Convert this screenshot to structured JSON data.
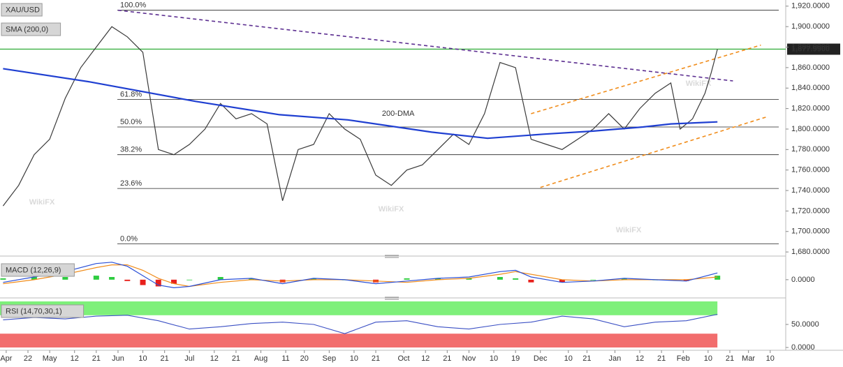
{
  "chart_data": [
    {
      "type": "line",
      "xlim": [
        -1,
        252
      ],
      "ylim": [
        1676,
        1926
      ],
      "yticks": [
        {
          "value": 1680,
          "label": "1,680.0000"
        },
        {
          "value": 1700,
          "label": "1,700.0000"
        },
        {
          "value": 1720,
          "label": "1,720.0000"
        },
        {
          "value": 1740,
          "label": "1,740.0000"
        },
        {
          "value": 1760,
          "label": "1,760.0000"
        },
        {
          "value": 1780,
          "label": "1,780.0000"
        },
        {
          "value": 1800,
          "label": "1,800.0000"
        },
        {
          "value": 1820,
          "label": "1,820.0000"
        },
        {
          "value": 1840,
          "label": "1,840.0000"
        },
        {
          "value": 1860,
          "label": "1,860.0000"
        },
        {
          "value": 1880,
          "label": "1,880.0000"
        },
        {
          "value": 1900,
          "label": "1,900.0000"
        },
        {
          "value": 1920,
          "label": "1,920.0000"
        }
      ],
      "series": [
        {
          "name": "XAU/USD",
          "color": "#3a3a3a",
          "x": [
            0,
            5,
            10,
            15,
            20,
            25,
            30,
            35,
            40,
            45,
            50,
            55,
            60,
            65,
            70,
            75,
            80,
            85,
            90,
            95,
            100,
            105,
            110,
            115,
            120,
            125,
            130,
            135,
            140,
            145,
            150,
            155,
            160,
            165,
            170,
            175,
            180,
            185,
            190,
            195,
            200,
            205,
            210,
            215,
            218,
            222,
            226,
            228,
            230
          ],
          "values": [
            1725,
            1745,
            1775,
            1790,
            1830,
            1860,
            1880,
            1900,
            1890,
            1875,
            1780,
            1775,
            1785,
            1800,
            1825,
            1810,
            1815,
            1805,
            1730,
            1780,
            1785,
            1815,
            1800,
            1790,
            1755,
            1745,
            1760,
            1765,
            1780,
            1795,
            1785,
            1815,
            1865,
            1860,
            1790,
            1785,
            1780,
            1790,
            1800,
            1815,
            1800,
            1820,
            1835,
            1845,
            1800,
            1810,
            1835,
            1855,
            1878
          ]
        },
        {
          "name": "SMA (200,0)",
          "color": "#1f3fd1",
          "x": [
            0,
            28,
            62,
            89,
            111,
            138,
            156,
            174,
            190,
            206,
            215,
            230
          ],
          "values": [
            1859,
            1846,
            1827,
            1814,
            1809,
            1797,
            1791,
            1795,
            1798,
            1802,
            1805,
            1807
          ]
        }
      ],
      "fib_levels": [
        {
          "value": 1916,
          "label": "100.0%"
        },
        {
          "value": 1829,
          "label": "61.8%"
        },
        {
          "value": 1802,
          "label": "50.0%"
        },
        {
          "value": 1775,
          "label": "38.2%"
        },
        {
          "value": 1742,
          "label": "23.6%"
        },
        {
          "value": 1688,
          "label": "0.0%"
        }
      ],
      "current_price": {
        "value": 1877.99,
        "label": "1,877.9900",
        "color": "#3cb043"
      },
      "trendlines": [
        {
          "color": "#5b2d90",
          "x": [
            37,
            235
          ],
          "values": [
            1916,
            1847
          ]
        },
        {
          "color": "#f08c1a",
          "x": [
            170,
            244
          ],
          "values": [
            1815,
            1882
          ]
        },
        {
          "color": "#f08c1a",
          "x": [
            173,
            246
          ],
          "values": [
            1743,
            1812
          ]
        }
      ],
      "annotations": [
        {
          "text": "200-DMA",
          "x": 122,
          "value": 1815,
          "color": "#6a3fb0"
        }
      ],
      "watermark": "WikiFX"
    },
    {
      "type": "macd",
      "title": "MACD (12,26,9)",
      "xlim": [
        -1,
        252
      ],
      "ylim": [
        -12,
        16
      ],
      "yticks": [
        {
          "value": 0,
          "label": "0.0000"
        }
      ],
      "macd": {
        "color": "#2a4fd6",
        "x": [
          0,
          10,
          20,
          30,
          35,
          40,
          45,
          50,
          55,
          60,
          70,
          80,
          90,
          100,
          110,
          120,
          130,
          140,
          150,
          160,
          165,
          170,
          180,
          190,
          200,
          210,
          220,
          230
        ],
        "values": [
          -2,
          2,
          6,
          12,
          13,
          10,
          3,
          -4,
          -6,
          -5,
          0,
          1,
          -3,
          1,
          0,
          -3,
          -1,
          1,
          2,
          6,
          7,
          2,
          -2,
          -1,
          1,
          0,
          -1,
          5
        ]
      },
      "signal": {
        "color": "#f08c1a",
        "x": [
          0,
          10,
          20,
          30,
          35,
          40,
          45,
          50,
          55,
          60,
          70,
          80,
          90,
          100,
          110,
          120,
          130,
          140,
          150,
          160,
          165,
          170,
          180,
          190,
          200,
          210,
          220,
          230
        ],
        "values": [
          -3,
          0,
          4,
          9,
          11,
          11,
          7,
          1,
          -3,
          -5,
          -2,
          0,
          -1,
          0,
          0,
          -1,
          -2,
          0,
          1,
          4,
          6,
          4,
          0,
          -1,
          0,
          0,
          0,
          2
        ]
      },
      "histogram": {
        "up_color": "#2ecc40",
        "down_color": "#e8201c",
        "x": [
          0,
          10,
          20,
          30,
          35,
          40,
          45,
          50,
          55,
          60,
          70,
          80,
          90,
          100,
          110,
          120,
          130,
          140,
          150,
          160,
          165,
          170,
          180,
          190,
          200,
          210,
          220,
          230
        ],
        "values": [
          1,
          2,
          2,
          3,
          2,
          -1,
          -4,
          -5,
          -3,
          0,
          2,
          1,
          -2,
          1,
          0,
          -2,
          1,
          1,
          1,
          2,
          1,
          -2,
          -2,
          0,
          1,
          0,
          -1,
          3
        ]
      }
    },
    {
      "type": "rsi",
      "title": "RSI (14,70,30,1)",
      "xlim": [
        -1,
        252
      ],
      "ylim": [
        -6,
        103
      ],
      "yticks": [
        {
          "value": 0,
          "label": "0.0000"
        },
        {
          "value": 50,
          "label": "50.0000"
        }
      ],
      "bands": [
        {
          "from": 70,
          "to": 100,
          "color": "#7ef07a"
        },
        {
          "from": 0,
          "to": 30,
          "color": "#f26d6d"
        }
      ],
      "series": [
        {
          "color": "#3a4fc4",
          "x": [
            0,
            10,
            20,
            30,
            40,
            50,
            60,
            70,
            80,
            90,
            100,
            110,
            120,
            130,
            140,
            150,
            160,
            170,
            180,
            190,
            200,
            210,
            220,
            230
          ],
          "values": [
            60,
            65,
            62,
            68,
            70,
            58,
            40,
            45,
            52,
            55,
            50,
            30,
            55,
            58,
            45,
            40,
            50,
            55,
            68,
            62,
            45,
            55,
            58,
            72
          ]
        }
      ],
      "xticks": [
        {
          "value": 1,
          "label": "Apr"
        },
        {
          "value": 8,
          "label": "22"
        },
        {
          "value": 15,
          "label": "May"
        },
        {
          "value": 23,
          "label": "12"
        },
        {
          "value": 30,
          "label": "21"
        },
        {
          "value": 37,
          "label": "Jun"
        },
        {
          "value": 45,
          "label": "10"
        },
        {
          "value": 52,
          "label": "21"
        },
        {
          "value": 60,
          "label": "Jul"
        },
        {
          "value": 68,
          "label": "12"
        },
        {
          "value": 75,
          "label": "21"
        },
        {
          "value": 83,
          "label": "Aug"
        },
        {
          "value": 91,
          "label": "11"
        },
        {
          "value": 97,
          "label": "20"
        },
        {
          "value": 105,
          "label": "Sep"
        },
        {
          "value": 113,
          "label": "10"
        },
        {
          "value": 120,
          "label": "21"
        },
        {
          "value": 129,
          "label": "Oct"
        },
        {
          "value": 136,
          "label": "12"
        },
        {
          "value": 143,
          "label": "21"
        },
        {
          "value": 150,
          "label": "Nov"
        },
        {
          "value": 158,
          "label": "10"
        },
        {
          "value": 165,
          "label": "19"
        },
        {
          "value": 173,
          "label": "Dec"
        },
        {
          "value": 182,
          "label": "10"
        },
        {
          "value": 188,
          "label": "21"
        },
        {
          "value": 197,
          "label": "Jan"
        },
        {
          "value": 205,
          "label": "12"
        },
        {
          "value": 212,
          "label": "21"
        },
        {
          "value": 219,
          "label": "Feb"
        },
        {
          "value": 227,
          "label": "10"
        },
        {
          "value": 234,
          "label": "21"
        },
        {
          "value": 240,
          "label": "Mar"
        },
        {
          "value": 247,
          "label": "10"
        }
      ]
    }
  ]
}
